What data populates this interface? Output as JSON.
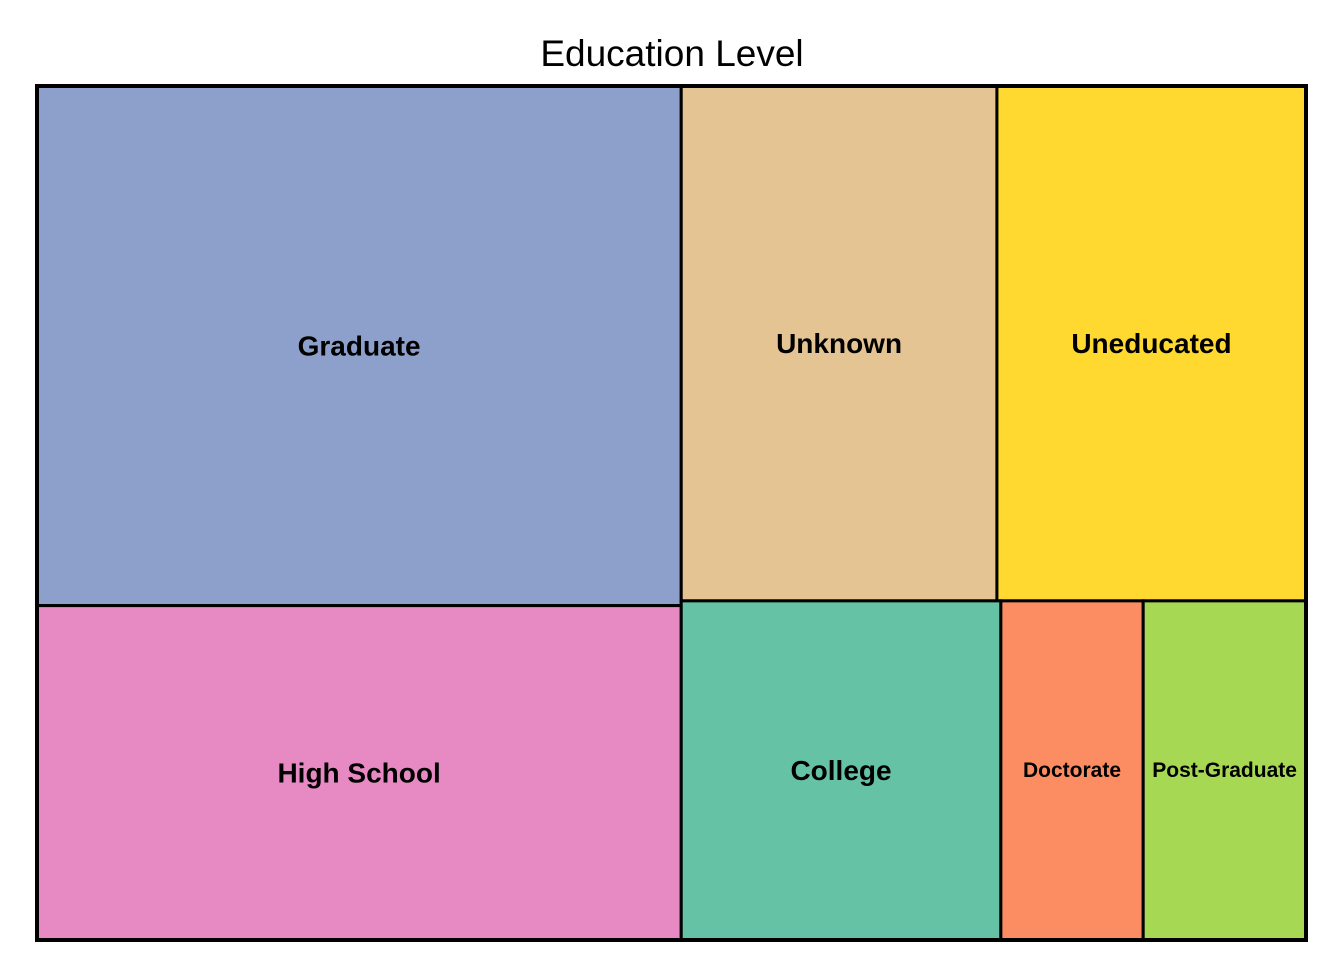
{
  "chart_data": {
    "type": "treemap",
    "title": "Education Level",
    "items": [
      {
        "label": "Graduate",
        "value": 3128,
        "color": "#8da0cb"
      },
      {
        "label": "High School",
        "value": 2013,
        "color": "#e78ac3"
      },
      {
        "label": "Unknown",
        "value": 1519,
        "color": "#e5c494"
      },
      {
        "label": "Uneducated",
        "value": 1487,
        "color": "#ffd92f"
      },
      {
        "label": "College",
        "value": 1013,
        "color": "#66c2a5"
      },
      {
        "label": "Doctorate",
        "value": 451,
        "color": "#fc8d62"
      },
      {
        "label": "Post-Graduate",
        "value": 516,
        "color": "#a6d854"
      }
    ]
  }
}
